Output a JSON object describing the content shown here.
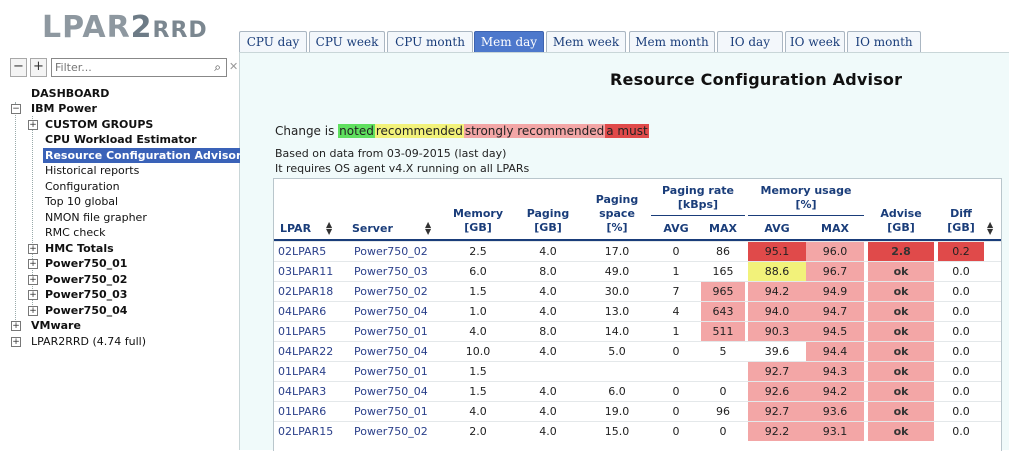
{
  "logo": {
    "part1": "LPAR",
    "part2": "2",
    "part3": "RRD"
  },
  "tabs": [
    {
      "label": "CPU day"
    },
    {
      "label": "CPU week"
    },
    {
      "label": "CPU month"
    },
    {
      "label": "Mem day"
    },
    {
      "label": "Mem week"
    },
    {
      "label": "Mem month"
    },
    {
      "label": "IO day"
    },
    {
      "label": "IO week"
    },
    {
      "label": "IO month"
    }
  ],
  "active_tab": "Mem day",
  "sidebar": {
    "collapse_label": "−",
    "expand_label": "+",
    "filter_placeholder": "Filter...",
    "search_icon": "⌕",
    "clear_icon": "✕",
    "tree": [
      {
        "label": "DASHBOARD"
      },
      {
        "label": "IBM Power"
      },
      {
        "label": "CUSTOM GROUPS"
      },
      {
        "label": "CPU Workload Estimator"
      },
      {
        "label": "Resource Configuration Advisor"
      },
      {
        "label": "Historical reports"
      },
      {
        "label": "Configuration"
      },
      {
        "label": "Top 10 global"
      },
      {
        "label": "NMON file grapher"
      },
      {
        "label": "RMC check"
      },
      {
        "label": "HMC Totals"
      },
      {
        "label": "Power750_01"
      },
      {
        "label": "Power750_02"
      },
      {
        "label": "Power750_03"
      },
      {
        "label": "Power750_04"
      },
      {
        "label": "VMware"
      },
      {
        "label": "LPAR2RRD (4.74 full)"
      }
    ]
  },
  "main": {
    "title": "Resource Configuration Advisor",
    "legend": {
      "prefix": "Change is ",
      "noted": "noted",
      "recommended": "recommended",
      "strong": "strongly recommended",
      "must": "a must"
    },
    "info1": "Based on data from 03-09-2015 (last day)",
    "info2": "It requires OS agent v4.X running on all LPARs"
  },
  "table": {
    "headers": {
      "lpar": "LPAR",
      "server": "Server",
      "memory": [
        "Memory",
        "[GB]"
      ],
      "paging": [
        "Paging",
        "[GB]"
      ],
      "paging_space": [
        "Paging",
        "space",
        "[%]"
      ],
      "paging_rate": [
        "Paging rate",
        "[kBps]"
      ],
      "memory_usage": [
        "Memory usage",
        "[%]"
      ],
      "avg": "AVG",
      "max": "MAX",
      "advise": [
        "Advise",
        "[GB]"
      ],
      "diff": [
        "Diff",
        "[GB]"
      ],
      "sort_icon": "▲▼"
    },
    "rows": [
      {
        "lpar": "02LPAR5",
        "server": "Power750_02",
        "mem": "2.5",
        "paging": "4.0",
        "space": "17.0",
        "pavg": "0",
        "pmax": "86",
        "uavg": "95.1",
        "umax": "96.0",
        "advise": "2.8",
        "diff": "0.2"
      },
      {
        "lpar": "03LPAR11",
        "server": "Power750_03",
        "mem": "6.0",
        "paging": "8.0",
        "space": "49.0",
        "pavg": "1",
        "pmax": "165",
        "uavg": "88.6",
        "umax": "96.7",
        "advise": "ok",
        "diff": "0.0"
      },
      {
        "lpar": "02LPAR18",
        "server": "Power750_02",
        "mem": "1.5",
        "paging": "4.0",
        "space": "30.0",
        "pavg": "7",
        "pmax": "965",
        "uavg": "94.2",
        "umax": "94.9",
        "advise": "ok",
        "diff": "0.0"
      },
      {
        "lpar": "04LPAR6",
        "server": "Power750_04",
        "mem": "1.0",
        "paging": "4.0",
        "space": "13.0",
        "pavg": "4",
        "pmax": "643",
        "uavg": "94.0",
        "umax": "94.7",
        "advise": "ok",
        "diff": "0.0"
      },
      {
        "lpar": "01LPAR5",
        "server": "Power750_01",
        "mem": "4.0",
        "paging": "8.0",
        "space": "14.0",
        "pavg": "1",
        "pmax": "511",
        "uavg": "90.3",
        "umax": "94.5",
        "advise": "ok",
        "diff": "0.0"
      },
      {
        "lpar": "04LPAR22",
        "server": "Power750_04",
        "mem": "10.0",
        "paging": "4.0",
        "space": "5.0",
        "pavg": "0",
        "pmax": "5",
        "uavg": "39.6",
        "umax": "94.4",
        "advise": "ok",
        "diff": "0.0"
      },
      {
        "lpar": "01LPAR4",
        "server": "Power750_01",
        "mem": "1.5",
        "paging": "",
        "space": "",
        "pavg": "",
        "pmax": "",
        "uavg": "92.7",
        "umax": "94.3",
        "advise": "ok",
        "diff": "0.0"
      },
      {
        "lpar": "04LPAR3",
        "server": "Power750_04",
        "mem": "1.5",
        "paging": "4.0",
        "space": "6.0",
        "pavg": "0",
        "pmax": "0",
        "uavg": "92.6",
        "umax": "94.2",
        "advise": "ok",
        "diff": "0.0"
      },
      {
        "lpar": "01LPAR6",
        "server": "Power750_01",
        "mem": "4.0",
        "paging": "4.0",
        "space": "19.0",
        "pavg": "0",
        "pmax": "96",
        "uavg": "92.7",
        "umax": "93.6",
        "advise": "ok",
        "diff": "0.0"
      },
      {
        "lpar": "02LPAR15",
        "server": "Power750_02",
        "mem": "2.0",
        "paging": "4.0",
        "space": "15.0",
        "pavg": "0",
        "pmax": "0",
        "uavg": "92.2",
        "umax": "93.1",
        "advise": "ok",
        "diff": "0.0"
      }
    ]
  },
  "colors": {
    "must": "#e04a4a",
    "strong": "#f3a6a6",
    "recommended": "#f2f27a",
    "noted": "#5fe05f",
    "active_tab": "#4d78cc"
  }
}
